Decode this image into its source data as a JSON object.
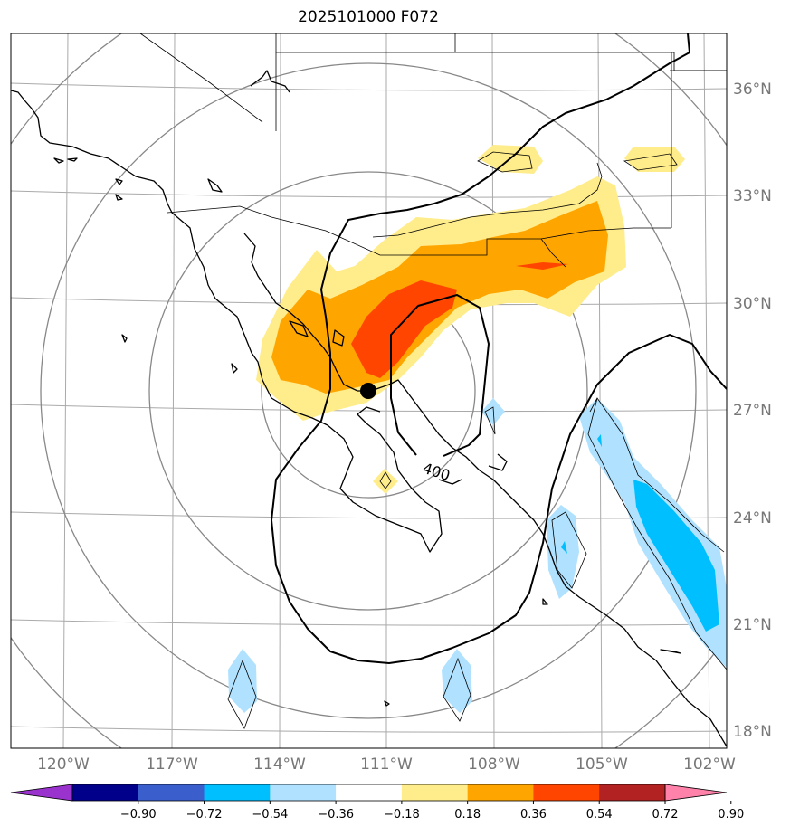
{
  "title": "2025101000 F072",
  "map": {
    "lat_labels": [
      "36°N",
      "33°N",
      "30°N",
      "27°N",
      "24°N",
      "21°N",
      "18°N"
    ],
    "lon_labels": [
      "120°W",
      "117°W",
      "114°W",
      "111°W",
      "108°W",
      "105°W",
      "102°W"
    ],
    "contour_label": "400",
    "marker": "storm-center-dot"
  },
  "colorbar": {
    "ticks": [
      "−0.90",
      "−0.72",
      "−0.54",
      "−0.36",
      "−0.18",
      "0.18",
      "0.36",
      "0.54",
      "0.72",
      "0.90"
    ],
    "colors": [
      "#9a32cd",
      "#00008b",
      "#3a5fcd",
      "#00bfff",
      "#b0e2ff",
      "#ffffff",
      "#ffec8b",
      "#ffa500",
      "#ff4500",
      "#b22222",
      "#ff82ab"
    ]
  },
  "fill_colors": {
    "light_yellow": "#ffec8b",
    "orange": "#ffa500",
    "red_orange": "#ff4500",
    "light_blue": "#b0e2ff",
    "deep_sky_blue": "#00bfff"
  }
}
